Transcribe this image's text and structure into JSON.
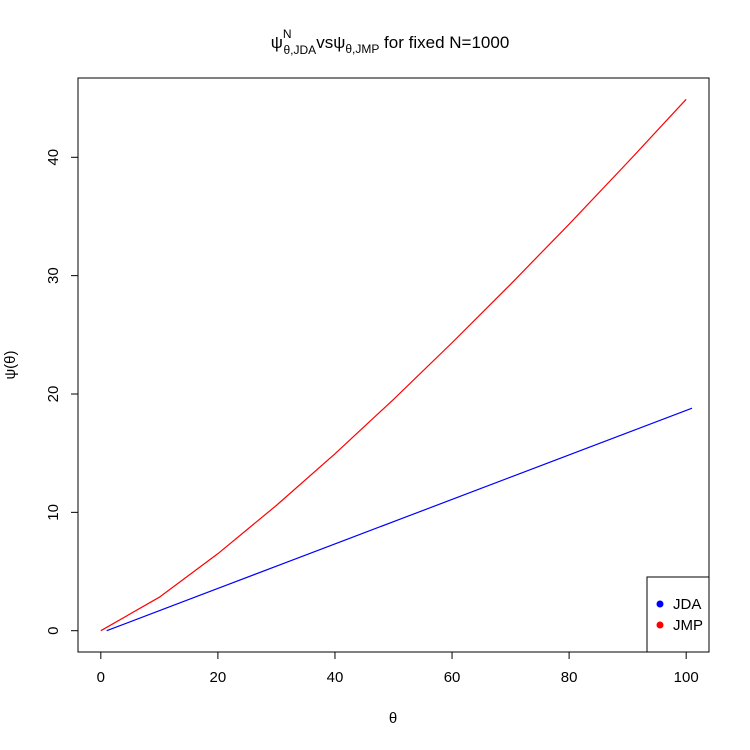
{
  "chart_data": {
    "type": "line",
    "title": {
      "main": "ψ",
      "sup": "N",
      "sub": "θ,JDA",
      "vs": "vs",
      "main2": "ψ",
      "sub2": "θ,JMP",
      "rest": " for fixed N=1000"
    },
    "xlabel": "θ",
    "ylabel": "ψ(θ)",
    "xlim": [
      -3.9,
      103.9
    ],
    "ylim": [
      -1.8,
      46.7
    ],
    "xticks": [
      0,
      20,
      40,
      60,
      80,
      100
    ],
    "yticks": [
      0,
      10,
      20,
      30,
      40
    ],
    "legend": "bottom-right",
    "series": [
      {
        "name": "JDA",
        "color": "#0000ff",
        "x": [
          1,
          11,
          21,
          31,
          41,
          51,
          61,
          71,
          81,
          91,
          101
        ],
        "values": [
          0,
          1.88,
          3.76,
          5.64,
          7.52,
          9.4,
          11.28,
          13.16,
          15.04,
          16.92,
          18.8
        ]
      },
      {
        "name": "JMP",
        "color": "#ff0000",
        "x": [
          0,
          10,
          20,
          30,
          40,
          50,
          60,
          70,
          80,
          90,
          100
        ],
        "values": [
          0,
          2.83,
          6.51,
          10.59,
          14.95,
          19.54,
          24.33,
          29.27,
          34.35,
          39.57,
          44.9
        ]
      }
    ]
  }
}
